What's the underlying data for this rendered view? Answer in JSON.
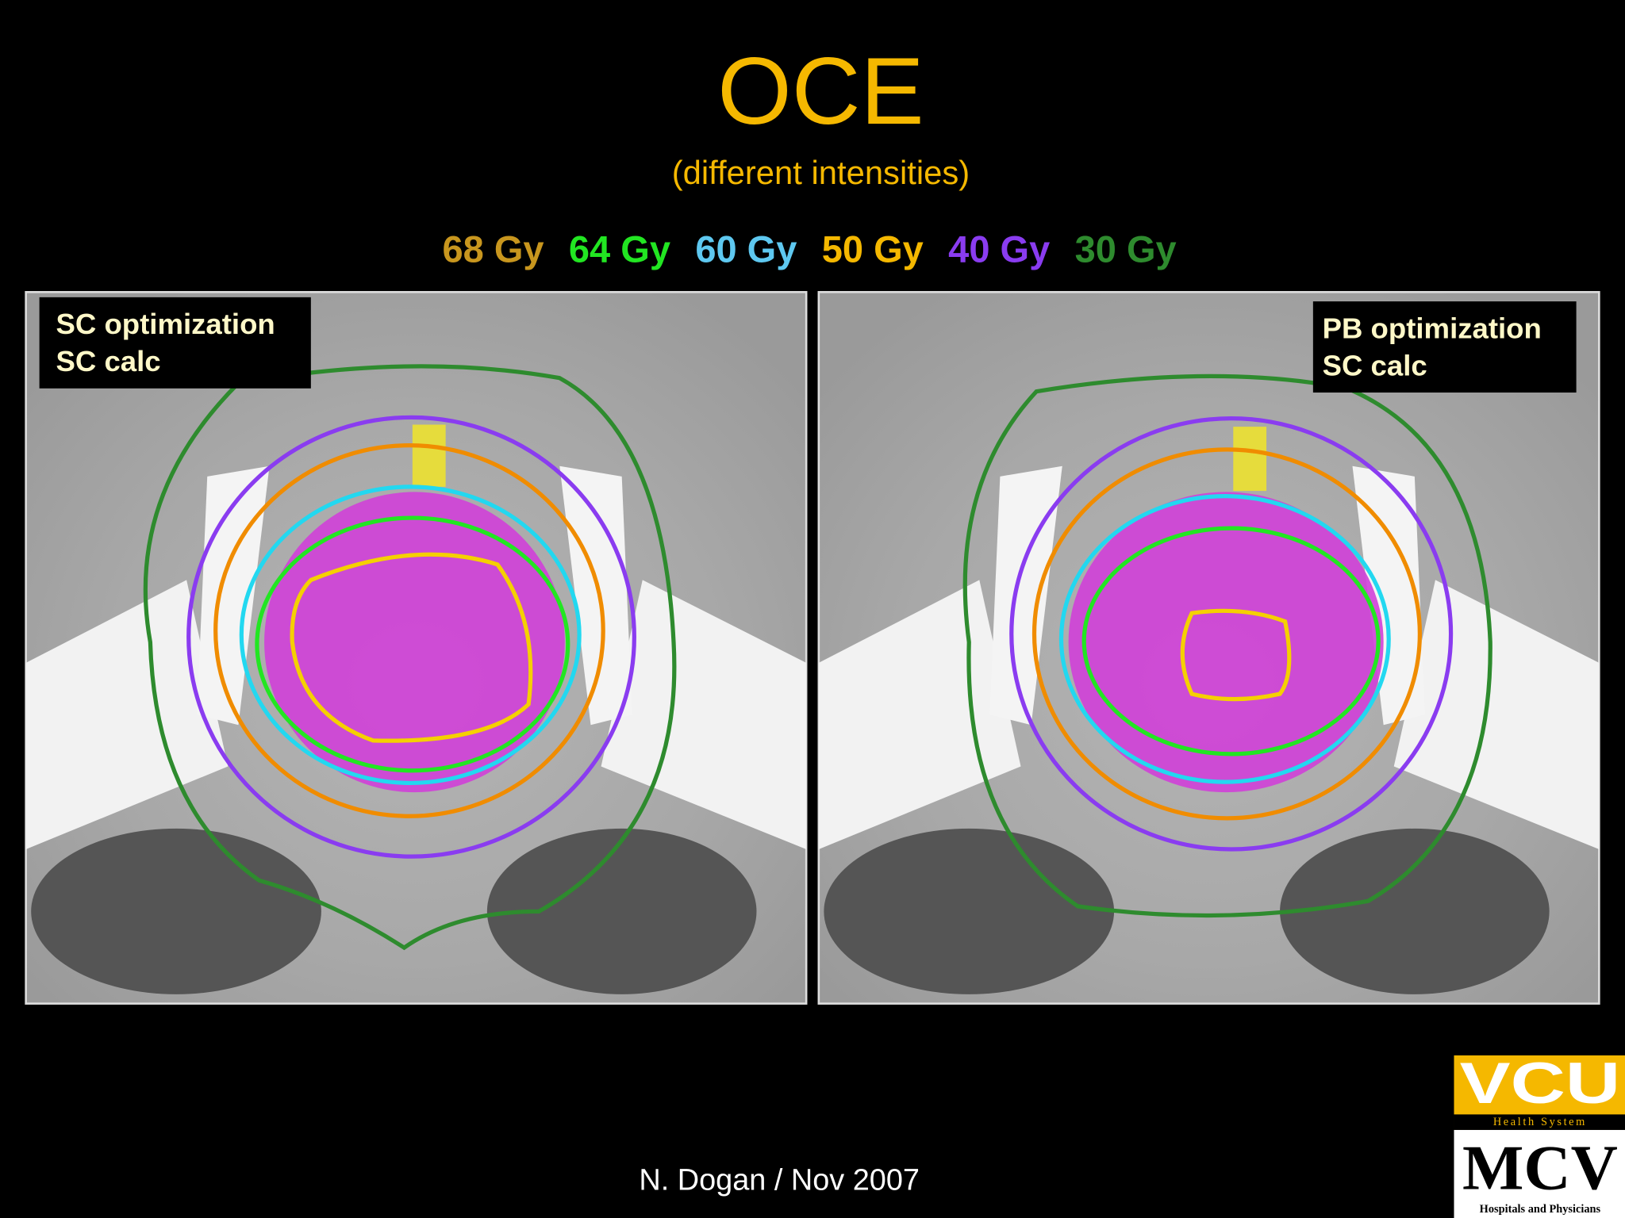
{
  "header": {
    "title": "OCE",
    "subtitle": "(different intensities)"
  },
  "legend": [
    {
      "label": "68 Gy",
      "color": "#c8961e"
    },
    {
      "label": "64 Gy",
      "color": "#22e622"
    },
    {
      "label": "60 Gy",
      "color": "#5ec8f0"
    },
    {
      "label": "50 Gy",
      "color": "#f5b800"
    },
    {
      "label": "40 Gy",
      "color": "#8a3cf0"
    },
    {
      "label": "30 Gy",
      "color": "#2e8b2e"
    }
  ],
  "panels": [
    {
      "lines": [
        "SC optimization",
        "SC calc"
      ]
    },
    {
      "lines": [
        "PB optimization",
        "SC calc"
      ]
    }
  ],
  "footer": "N. Dogan / Nov 2007",
  "logo": {
    "top": "VCU",
    "band": "Health System",
    "bottom": "MCV",
    "caption": "Hospitals and Physicians"
  }
}
